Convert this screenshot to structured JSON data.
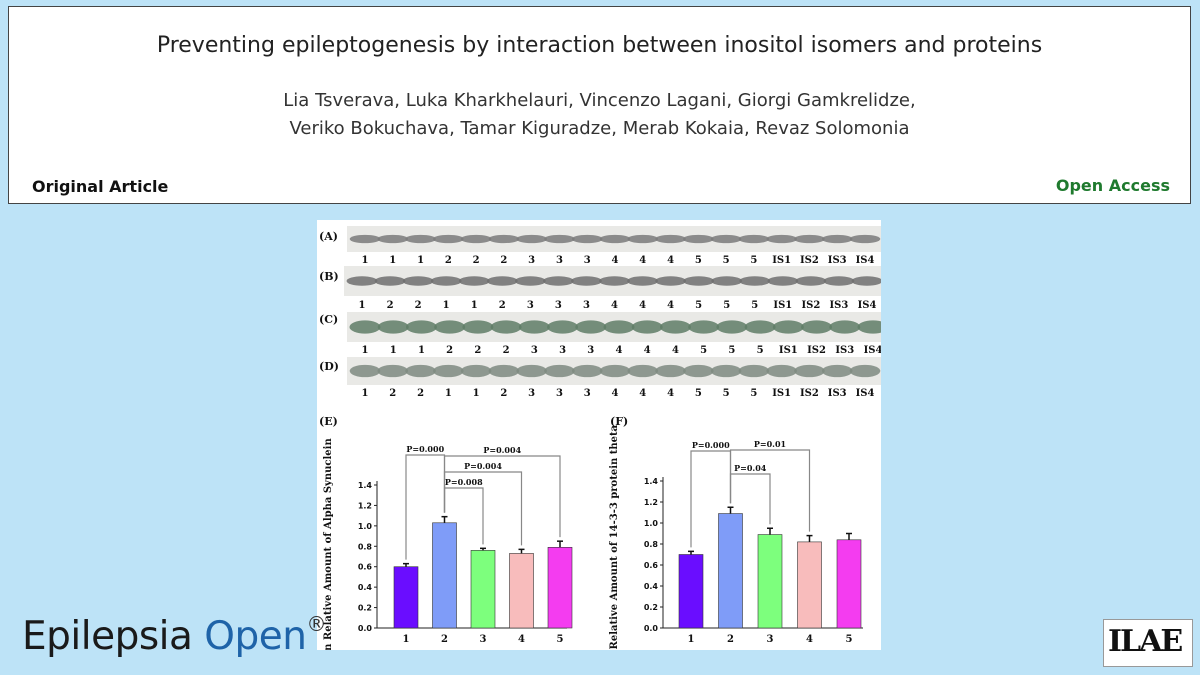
{
  "header": {
    "title": "Preventing epileptogenesis by interaction between inositol isomers and proteins",
    "authors_line1": "Lia Tsverava, Luka Kharkhelauri, Vincenzo Lagani, Giorgi Gamkrelidze,",
    "authors_line2": "Veriko Bokuchava, Tamar Kiguradze, Merab Kokaia, Revaz Solomonia",
    "article_type": "Original Article",
    "access": "Open Access"
  },
  "journal": {
    "name_part1": "Epilepsia",
    "name_part2": "Open",
    "reg": "®"
  },
  "logo": {
    "text": "ILAE"
  },
  "colors": {
    "bar1": "#6a0dff",
    "bar2": "#7f9cf8",
    "bar3": "#7dff7d",
    "bar4": "#f8bcbc",
    "bar5": "#f43cf0",
    "open_access": "#1f7a2e"
  },
  "blots": {
    "panel_labels": [
      "(A)",
      "(B)",
      "(C)",
      "(D)"
    ],
    "lanes": [
      [
        "1",
        "1",
        "1",
        "2",
        "2",
        "2",
        "3",
        "3",
        "3",
        "4",
        "4",
        "4",
        "5",
        "5",
        "5",
        "IS1",
        "IS2",
        "IS3",
        "IS4"
      ],
      [
        "1",
        "2",
        "2",
        "1",
        "1",
        "2",
        "3",
        "3",
        "3",
        "4",
        "4",
        "4",
        "5",
        "5",
        "5",
        "IS1",
        "IS2",
        "IS3",
        "IS4"
      ],
      [
        "1",
        "1",
        "1",
        "2",
        "2",
        "2",
        "3",
        "3",
        "3",
        "4",
        "4",
        "4",
        "5",
        "5",
        "5",
        "IS1",
        "IS2",
        "IS3",
        "IS4"
      ],
      [
        "1",
        "2",
        "2",
        "1",
        "1",
        "2",
        "3",
        "3",
        "3",
        "4",
        "4",
        "4",
        "5",
        "5",
        "5",
        "IS1",
        "IS2",
        "IS3",
        "IS4"
      ]
    ]
  },
  "chart_data": [
    {
      "type": "bar",
      "panel": "(E)",
      "categories": [
        "1",
        "2",
        "3",
        "4",
        "5"
      ],
      "values": [
        0.6,
        1.03,
        0.76,
        0.73,
        0.79
      ],
      "errors": [
        0.03,
        0.06,
        0.02,
        0.04,
        0.06
      ],
      "ylabel": "Mean Relative Amount of Alpha Synuclein",
      "ylim": [
        0,
        1.4
      ],
      "yticks": [
        "0.0",
        "0.2",
        "0.4",
        "0.6",
        "0.8",
        "1.0",
        "1.2",
        "1.4"
      ],
      "annotations": [
        "P=0.000",
        "P=0.004",
        "P=0.004",
        "P=0.008"
      ]
    },
    {
      "type": "bar",
      "panel": "(F)",
      "categories": [
        "1",
        "2",
        "3",
        "4",
        "5"
      ],
      "values": [
        0.7,
        1.09,
        0.89,
        0.82,
        0.84
      ],
      "errors": [
        0.03,
        0.06,
        0.06,
        0.06,
        0.06
      ],
      "ylabel": "Mean Relative Amount of 14-3-3 protein theta",
      "ylim": [
        0,
        1.4
      ],
      "yticks": [
        "0.0",
        "0.2",
        "0.4",
        "0.6",
        "0.8",
        "1.0",
        "1.2",
        "1.4"
      ],
      "annotations": [
        "P=0.000",
        "P=0.01",
        "P=0.04"
      ]
    }
  ]
}
